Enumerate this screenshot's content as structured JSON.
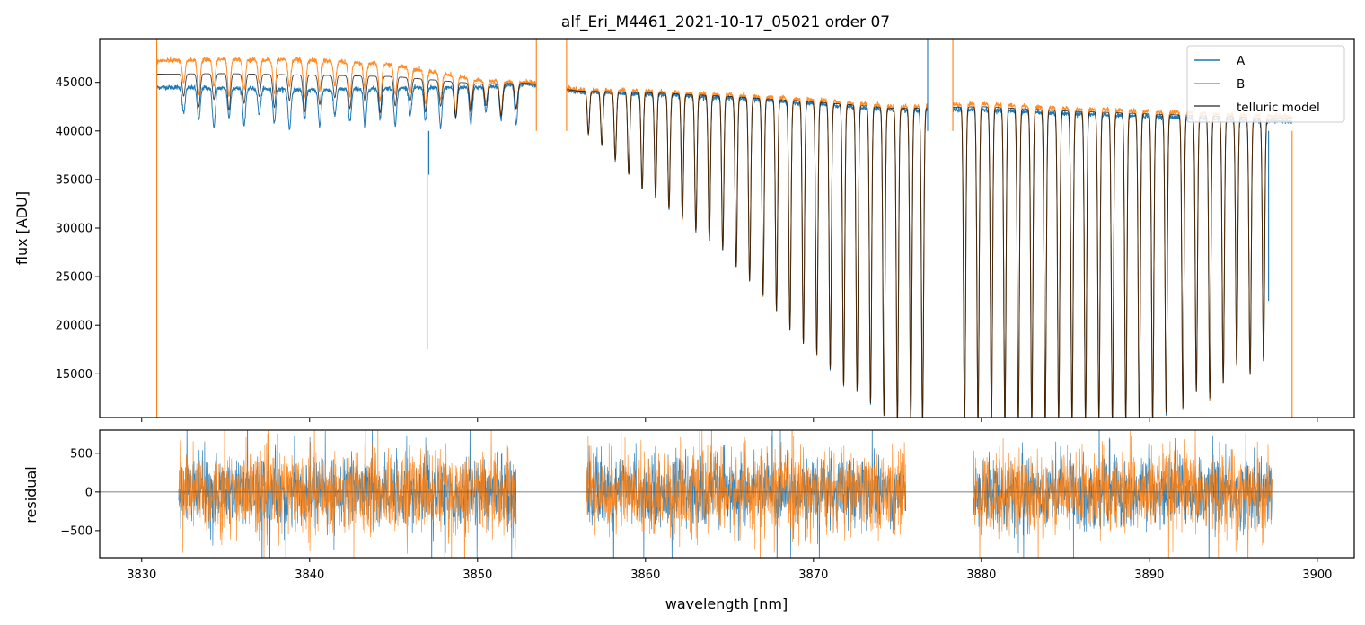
{
  "colors": {
    "A": "#1f77b4",
    "B": "#ff7f0e",
    "model": "#000000",
    "zero_line": "#555555",
    "axes": "#000000",
    "background": "#ffffff"
  },
  "chart_data": [
    {
      "type": "line",
      "panel": "top",
      "title": "alf_Eri_M4461_2021-10-17_05021  order 07",
      "xlabel": "",
      "ylabel": "flux [ADU]",
      "xlim": [
        3827.5,
        3902.2
      ],
      "ylim": [
        10500,
        49500
      ],
      "yticks": [
        15000,
        20000,
        25000,
        30000,
        35000,
        40000,
        45000
      ],
      "ytick_labels": [
        "15000",
        "20000",
        "25000",
        "30000",
        "35000",
        "40000",
        "45000"
      ],
      "xticks": [
        3830,
        3840,
        3850,
        3860,
        3870,
        3880,
        3890,
        3900
      ],
      "legend": {
        "position": "top-right",
        "entries": [
          "A",
          "B",
          "telluric model"
        ]
      },
      "description_of_data": "Spectrum with regular telluric absorption lines; dense sampled curves",
      "data_range_x": [
        3830.9,
        3898.5
      ],
      "gaps": [
        [
          3853.5,
          3855.3
        ],
        [
          3876.8,
          3878.3
        ]
      ],
      "continuum_points": {
        "A": [
          [
            3831,
            44500
          ],
          [
            3835,
            44400
          ],
          [
            3840,
            44200
          ],
          [
            3845,
            44400
          ],
          [
            3850,
            44500
          ],
          [
            3853,
            44800
          ],
          [
            3856,
            44000
          ],
          [
            3860,
            43800
          ],
          [
            3865,
            43400
          ],
          [
            3870,
            42800
          ],
          [
            3875,
            42100
          ],
          [
            3880,
            42200
          ],
          [
            3885,
            41800
          ],
          [
            3890,
            41500
          ],
          [
            3895,
            41200
          ],
          [
            3897,
            41000
          ]
        ],
        "B": [
          [
            3831,
            47200
          ],
          [
            3835,
            47400
          ],
          [
            3840,
            47300
          ],
          [
            3845,
            46800
          ],
          [
            3850,
            45200
          ],
          [
            3853,
            45000
          ],
          [
            3856,
            44200
          ],
          [
            3860,
            44100
          ],
          [
            3865,
            43700
          ],
          [
            3870,
            43200
          ],
          [
            3875,
            42500
          ],
          [
            3880,
            42800
          ],
          [
            3885,
            42300
          ],
          [
            3890,
            42000
          ],
          [
            3895,
            41700
          ],
          [
            3898,
            41500
          ]
        ]
      },
      "absorption_lines_first_segment": [
        3832.5,
        3833.4,
        3834.3,
        3835.2,
        3836.1,
        3837.0,
        3837.9,
        3838.8,
        3839.7,
        3840.6,
        3841.5,
        3842.4,
        3843.3,
        3844.2,
        3845.1,
        3846.0,
        3846.9,
        3847.8,
        3848.7,
        3849.6,
        3850.5,
        3851.4,
        3852.3
      ],
      "strong_lines_second_segment": [
        [
          3856.6,
          40200
        ],
        [
          3857.4,
          39000
        ],
        [
          3858.2,
          37500
        ],
        [
          3859.0,
          36000
        ],
        [
          3859.8,
          34500
        ],
        [
          3860.6,
          33600
        ],
        [
          3861.4,
          32500
        ],
        [
          3862.2,
          31500
        ],
        [
          3863.0,
          30200
        ],
        [
          3863.8,
          29200
        ],
        [
          3864.6,
          28300
        ],
        [
          3865.4,
          26500
        ],
        [
          3866.2,
          25000
        ],
        [
          3867.0,
          23600
        ],
        [
          3867.8,
          22000
        ],
        [
          3868.6,
          20000
        ],
        [
          3869.4,
          18600
        ],
        [
          3870.2,
          17500
        ],
        [
          3871.0,
          16000
        ],
        [
          3871.8,
          14300
        ],
        [
          3872.6,
          13800
        ],
        [
          3873.4,
          12500
        ],
        [
          3874.2,
          11200
        ],
        [
          3875.0,
          10500
        ],
        [
          3875.8,
          10500
        ],
        [
          3876.5,
          10500
        ]
      ],
      "strong_lines_third_segment": [
        [
          3879.0,
          10500
        ],
        [
          3879.8,
          10500
        ],
        [
          3880.6,
          10500
        ],
        [
          3881.4,
          10500
        ],
        [
          3882.2,
          10500
        ],
        [
          3883.0,
          10500
        ],
        [
          3883.8,
          10500
        ],
        [
          3884.6,
          10500
        ],
        [
          3885.4,
          10500
        ],
        [
          3886.2,
          10500
        ],
        [
          3887.0,
          10500
        ],
        [
          3887.8,
          10500
        ],
        [
          3888.6,
          10500
        ],
        [
          3889.4,
          10500
        ],
        [
          3890.2,
          10500
        ],
        [
          3891.0,
          11500
        ],
        [
          3892.0,
          12000
        ],
        [
          3892.8,
          13700
        ],
        [
          3893.6,
          13000
        ],
        [
          3894.4,
          14500
        ],
        [
          3895.2,
          16500
        ],
        [
          3896.0,
          15400
        ],
        [
          3896.8,
          16800
        ]
      ],
      "spikes": [
        {
          "series": "A",
          "x": 3847.0,
          "y": 17500
        },
        {
          "series": "A",
          "x": 3847.1,
          "y": 35500
        },
        {
          "series": "B",
          "x": 3853.5,
          "y": 49500
        },
        {
          "series": "B",
          "x": 3855.3,
          "y": 49500
        },
        {
          "series": "A",
          "x": 3876.8,
          "y": 49500
        },
        {
          "series": "B",
          "x": 3878.3,
          "y": 49500
        },
        {
          "series": "A",
          "x": 3897.1,
          "y": 22500
        },
        {
          "series": "B",
          "x": 3898.5,
          "y": 10500
        }
      ]
    },
    {
      "type": "line",
      "panel": "bottom",
      "title": "",
      "xlabel": "wavelength [nm]",
      "ylabel": "residual",
      "xlim": [
        3827.5,
        3902.2
      ],
      "ylim": [
        -850,
        800
      ],
      "yticks": [
        -500,
        0,
        500
      ],
      "ytick_labels": [
        "−500",
        "0",
        "500"
      ],
      "xticks": [
        3830,
        3840,
        3850,
        3860,
        3870,
        3880,
        3890,
        3900
      ],
      "xtick_labels": [
        "3830",
        "3840",
        "3850",
        "3860",
        "3870",
        "3880",
        "3890",
        "3900"
      ],
      "zero_line": 0,
      "residual_segments": [
        [
          3832.2,
          3852.3
        ],
        [
          3856.5,
          3875.5
        ],
        [
          3879.5,
          3897.3
        ]
      ],
      "residual_noise_std": {
        "A": 220,
        "B": 260
      }
    }
  ]
}
